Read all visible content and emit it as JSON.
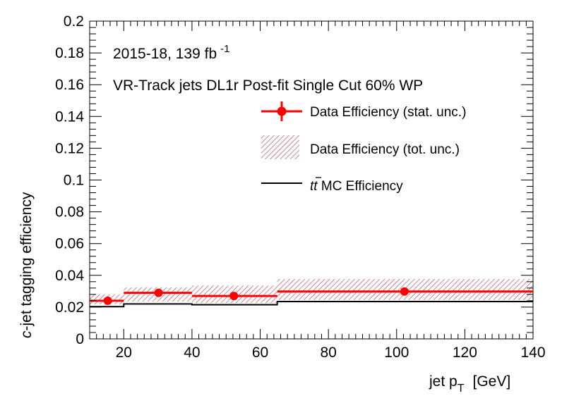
{
  "chart_data": {
    "type": "line",
    "ylabel_italic": "c",
    "ylabel_rest": "-jet tagging efficiency",
    "xlabel": "jet p",
    "xlabel_sub": "T",
    "xlabel_unit": "[GeV]",
    "annotation_lumi": "2015-18, 139 fb",
    "annotation_lumi_sup": "-1",
    "annotation_selection": "VR-Track jets DL1r Post-fit Single Cut 60% WP",
    "xlim": [
      10,
      140
    ],
    "ylim": [
      0,
      0.2
    ],
    "x_ticks": [
      "20",
      "40",
      "60",
      "80",
      "100",
      "120",
      "140"
    ],
    "y_ticks": [
      "0",
      "0.02",
      "0.04",
      "0.06",
      "0.08",
      "0.1",
      "0.12",
      "0.14",
      "0.16",
      "0.18",
      "0.2"
    ],
    "bins": [
      {
        "lo": 10,
        "hi": 20,
        "center": 15.3,
        "data": 0.024,
        "stat_err": 0.0008,
        "tot_lo": 0.0218,
        "tot_hi": 0.028,
        "mc": 0.0203
      },
      {
        "lo": 20,
        "hi": 40,
        "center": 30.2,
        "data": 0.029,
        "stat_err": 0.0008,
        "tot_lo": 0.0235,
        "tot_hi": 0.0325,
        "mc": 0.022
      },
      {
        "lo": 40,
        "hi": 65,
        "center": 52.3,
        "data": 0.027,
        "stat_err": 0.0008,
        "tot_lo": 0.0225,
        "tot_hi": 0.0336,
        "mc": 0.0215
      },
      {
        "lo": 65,
        "hi": 140,
        "center": 102.3,
        "data": 0.0298,
        "stat_err": 0.0008,
        "tot_lo": 0.0245,
        "tot_hi": 0.0377,
        "mc": 0.0235
      }
    ],
    "legend": {
      "data_stat": "Data Efficiency (stat. unc.)",
      "data_tot": "Data Efficiency (tot. unc.)",
      "mc_prefix": "t",
      "mc_suffix": " MC Efficiency"
    },
    "colors": {
      "data": "#ff0000",
      "band": "#a33a4e",
      "mc": "#000000"
    },
    "legend_position": "top-right",
    "grid": false
  }
}
